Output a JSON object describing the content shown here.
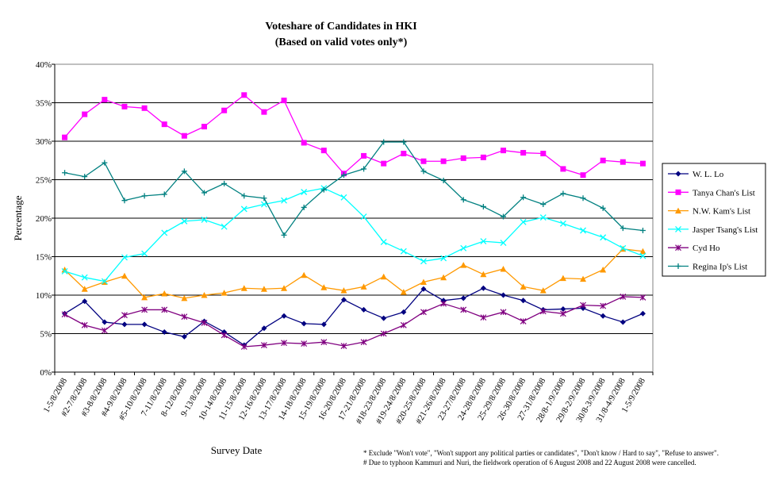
{
  "chart_data": {
    "type": "line",
    "title": "Voteshare of Candidates in HKI",
    "subtitle": "(Based on valid votes only*)",
    "xlabel": "Survey Date",
    "ylabel": "Percentage",
    "ylim": [
      0,
      40
    ],
    "yticks": [
      "0%",
      "5%",
      "10%",
      "15%",
      "20%",
      "25%",
      "30%",
      "35%",
      "40%"
    ],
    "grid": "horizontal",
    "legend_position": "right",
    "categories": [
      "1-5/8/2008",
      "#2-7/8/2008",
      "#3-8/8/2008",
      "#4-9/8/2008",
      "#5-10/8/2008",
      "7-11/8/2008",
      "8-12/8/2008",
      "9-13/8/2008",
      "10-14/8/2008",
      "11-15/8/2008",
      "12-16/8/2008",
      "13-17/8/2008",
      "14-18/8/2008",
      "15-19/8/2008",
      "16-20/8/2008",
      "17-21/8/2008",
      "#18-23/8/2008",
      "#19-24/8/2008",
      "#20-25/8/2008",
      "#21-26/8/2008",
      "23-27/8/2008",
      "24-28/8/2008",
      "25-29/8/2008",
      "26-30/8/2008",
      "27-31/8/2008",
      "28/8-1/9/2008",
      "29/8-2/9/2008",
      "30/8-3/9/2008",
      "31/8-4/9/2008",
      "1-5/9/2008"
    ],
    "series": [
      {
        "name": "W. L. Lo",
        "color": "#000080",
        "marker": "diamond",
        "values": [
          7.6,
          9.2,
          6.5,
          6.2,
          6.2,
          5.2,
          4.6,
          6.6,
          5.2,
          3.5,
          5.7,
          7.3,
          6.3,
          6.2,
          9.4,
          8.1,
          7.0,
          7.8,
          10.8,
          9.3,
          9.6,
          10.9,
          10.0,
          9.3,
          8.1,
          8.2,
          8.3,
          7.3,
          6.5,
          7.6
        ]
      },
      {
        "name": "Tanya Chan's List",
        "color": "#ff00ff",
        "marker": "square",
        "values": [
          30.5,
          33.5,
          35.4,
          34.5,
          34.3,
          32.2,
          30.7,
          31.9,
          34.0,
          36.0,
          33.8,
          35.3,
          29.8,
          28.8,
          25.8,
          28.1,
          27.1,
          28.4,
          27.4,
          27.4,
          27.8,
          27.9,
          28.8,
          28.5,
          28.4,
          26.4,
          25.6,
          27.5,
          27.3,
          27.1
        ]
      },
      {
        "name": "N.W. Kam's List",
        "color": "#ff9900",
        "marker": "triangle",
        "values": [
          13.3,
          10.8,
          11.7,
          12.5,
          9.7,
          10.2,
          9.6,
          10.0,
          10.3,
          10.9,
          10.8,
          10.9,
          12.6,
          11.0,
          10.6,
          11.1,
          12.4,
          10.4,
          11.7,
          12.3,
          13.9,
          12.7,
          13.4,
          11.1,
          10.6,
          12.2,
          12.1,
          13.3,
          16.0,
          15.7
        ]
      },
      {
        "name": "Jasper Tsang's List",
        "color": "#00ffff",
        "marker": "x",
        "values": [
          13.1,
          12.3,
          11.8,
          14.9,
          15.4,
          18.1,
          19.6,
          19.8,
          18.9,
          21.2,
          21.8,
          22.3,
          23.4,
          23.9,
          22.7,
          20.2,
          16.9,
          15.7,
          14.4,
          14.8,
          16.1,
          17.0,
          16.8,
          19.5,
          20.1,
          19.3,
          18.4,
          17.5,
          16.1,
          15.1
        ]
      },
      {
        "name": "Cyd Ho",
        "color": "#800080",
        "marker": "star",
        "values": [
          7.5,
          6.1,
          5.4,
          7.4,
          8.1,
          8.1,
          7.2,
          6.4,
          4.8,
          3.3,
          3.5,
          3.8,
          3.7,
          3.9,
          3.4,
          3.9,
          5.0,
          6.1,
          7.8,
          8.9,
          8.1,
          7.1,
          7.8,
          6.6,
          7.9,
          7.6,
          8.7,
          8.6,
          9.8,
          9.7
        ]
      },
      {
        "name": "Regina Ip's List",
        "color": "#008080",
        "marker": "plus",
        "values": [
          25.9,
          25.4,
          27.2,
          22.3,
          22.9,
          23.1,
          26.1,
          23.3,
          24.5,
          22.9,
          22.6,
          17.8,
          21.4,
          23.7,
          25.6,
          26.4,
          29.9,
          29.9,
          26.1,
          24.9,
          22.4,
          21.5,
          20.2,
          22.7,
          21.8,
          23.2,
          22.6,
          21.3,
          18.7,
          18.4
        ]
      }
    ]
  },
  "footnotes": {
    "line1": "* Exclude \"Won't vote\", \"Won't support any political parties or candidates\", \"Don't know / Hard to say\", \"Refuse to answer\".",
    "line2": "# Due to typhoon Kammuri and Nuri, the fieldwork operation of 6 August 2008 and 22 August 2008 were cancelled."
  }
}
